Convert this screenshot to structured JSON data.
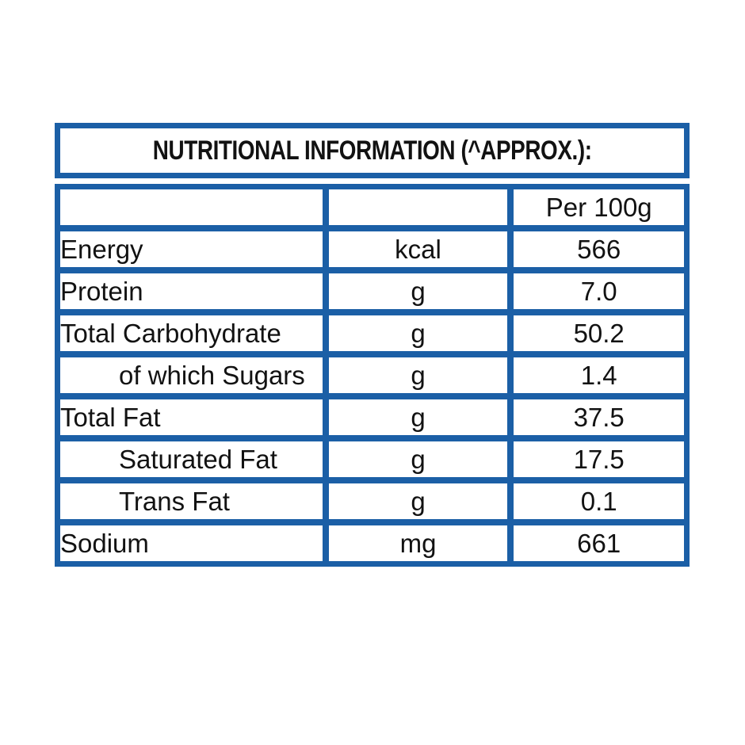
{
  "page": {
    "background_color": "#ffffff",
    "text_color": "#121212"
  },
  "label": {
    "title": "NUTRITIONAL INFORMATION (^APPROX.):",
    "border_color": "#1b5fa6",
    "column_headers": {
      "nutrient": "",
      "unit": "",
      "per_100g": "Per 100g"
    },
    "rows": [
      {
        "nutrient": "Energy",
        "unit": "kcal",
        "per_100g": "566",
        "indent": false
      },
      {
        "nutrient": "Protein",
        "unit": "g",
        "per_100g": "7.0",
        "indent": false
      },
      {
        "nutrient": "Total Carbohydrate",
        "unit": "g",
        "per_100g": "50.2",
        "indent": false
      },
      {
        "nutrient": "of which Sugars",
        "unit": "g",
        "per_100g": "1.4",
        "indent": true
      },
      {
        "nutrient": "Total Fat",
        "unit": "g",
        "per_100g": "37.5",
        "indent": false
      },
      {
        "nutrient": "Saturated Fat",
        "unit": "g",
        "per_100g": "17.5",
        "indent": true
      },
      {
        "nutrient": "Trans Fat",
        "unit": "g",
        "per_100g": "0.1",
        "indent": true
      },
      {
        "nutrient": "Sodium",
        "unit": "mg",
        "per_100g": "661",
        "indent": false
      }
    ]
  }
}
